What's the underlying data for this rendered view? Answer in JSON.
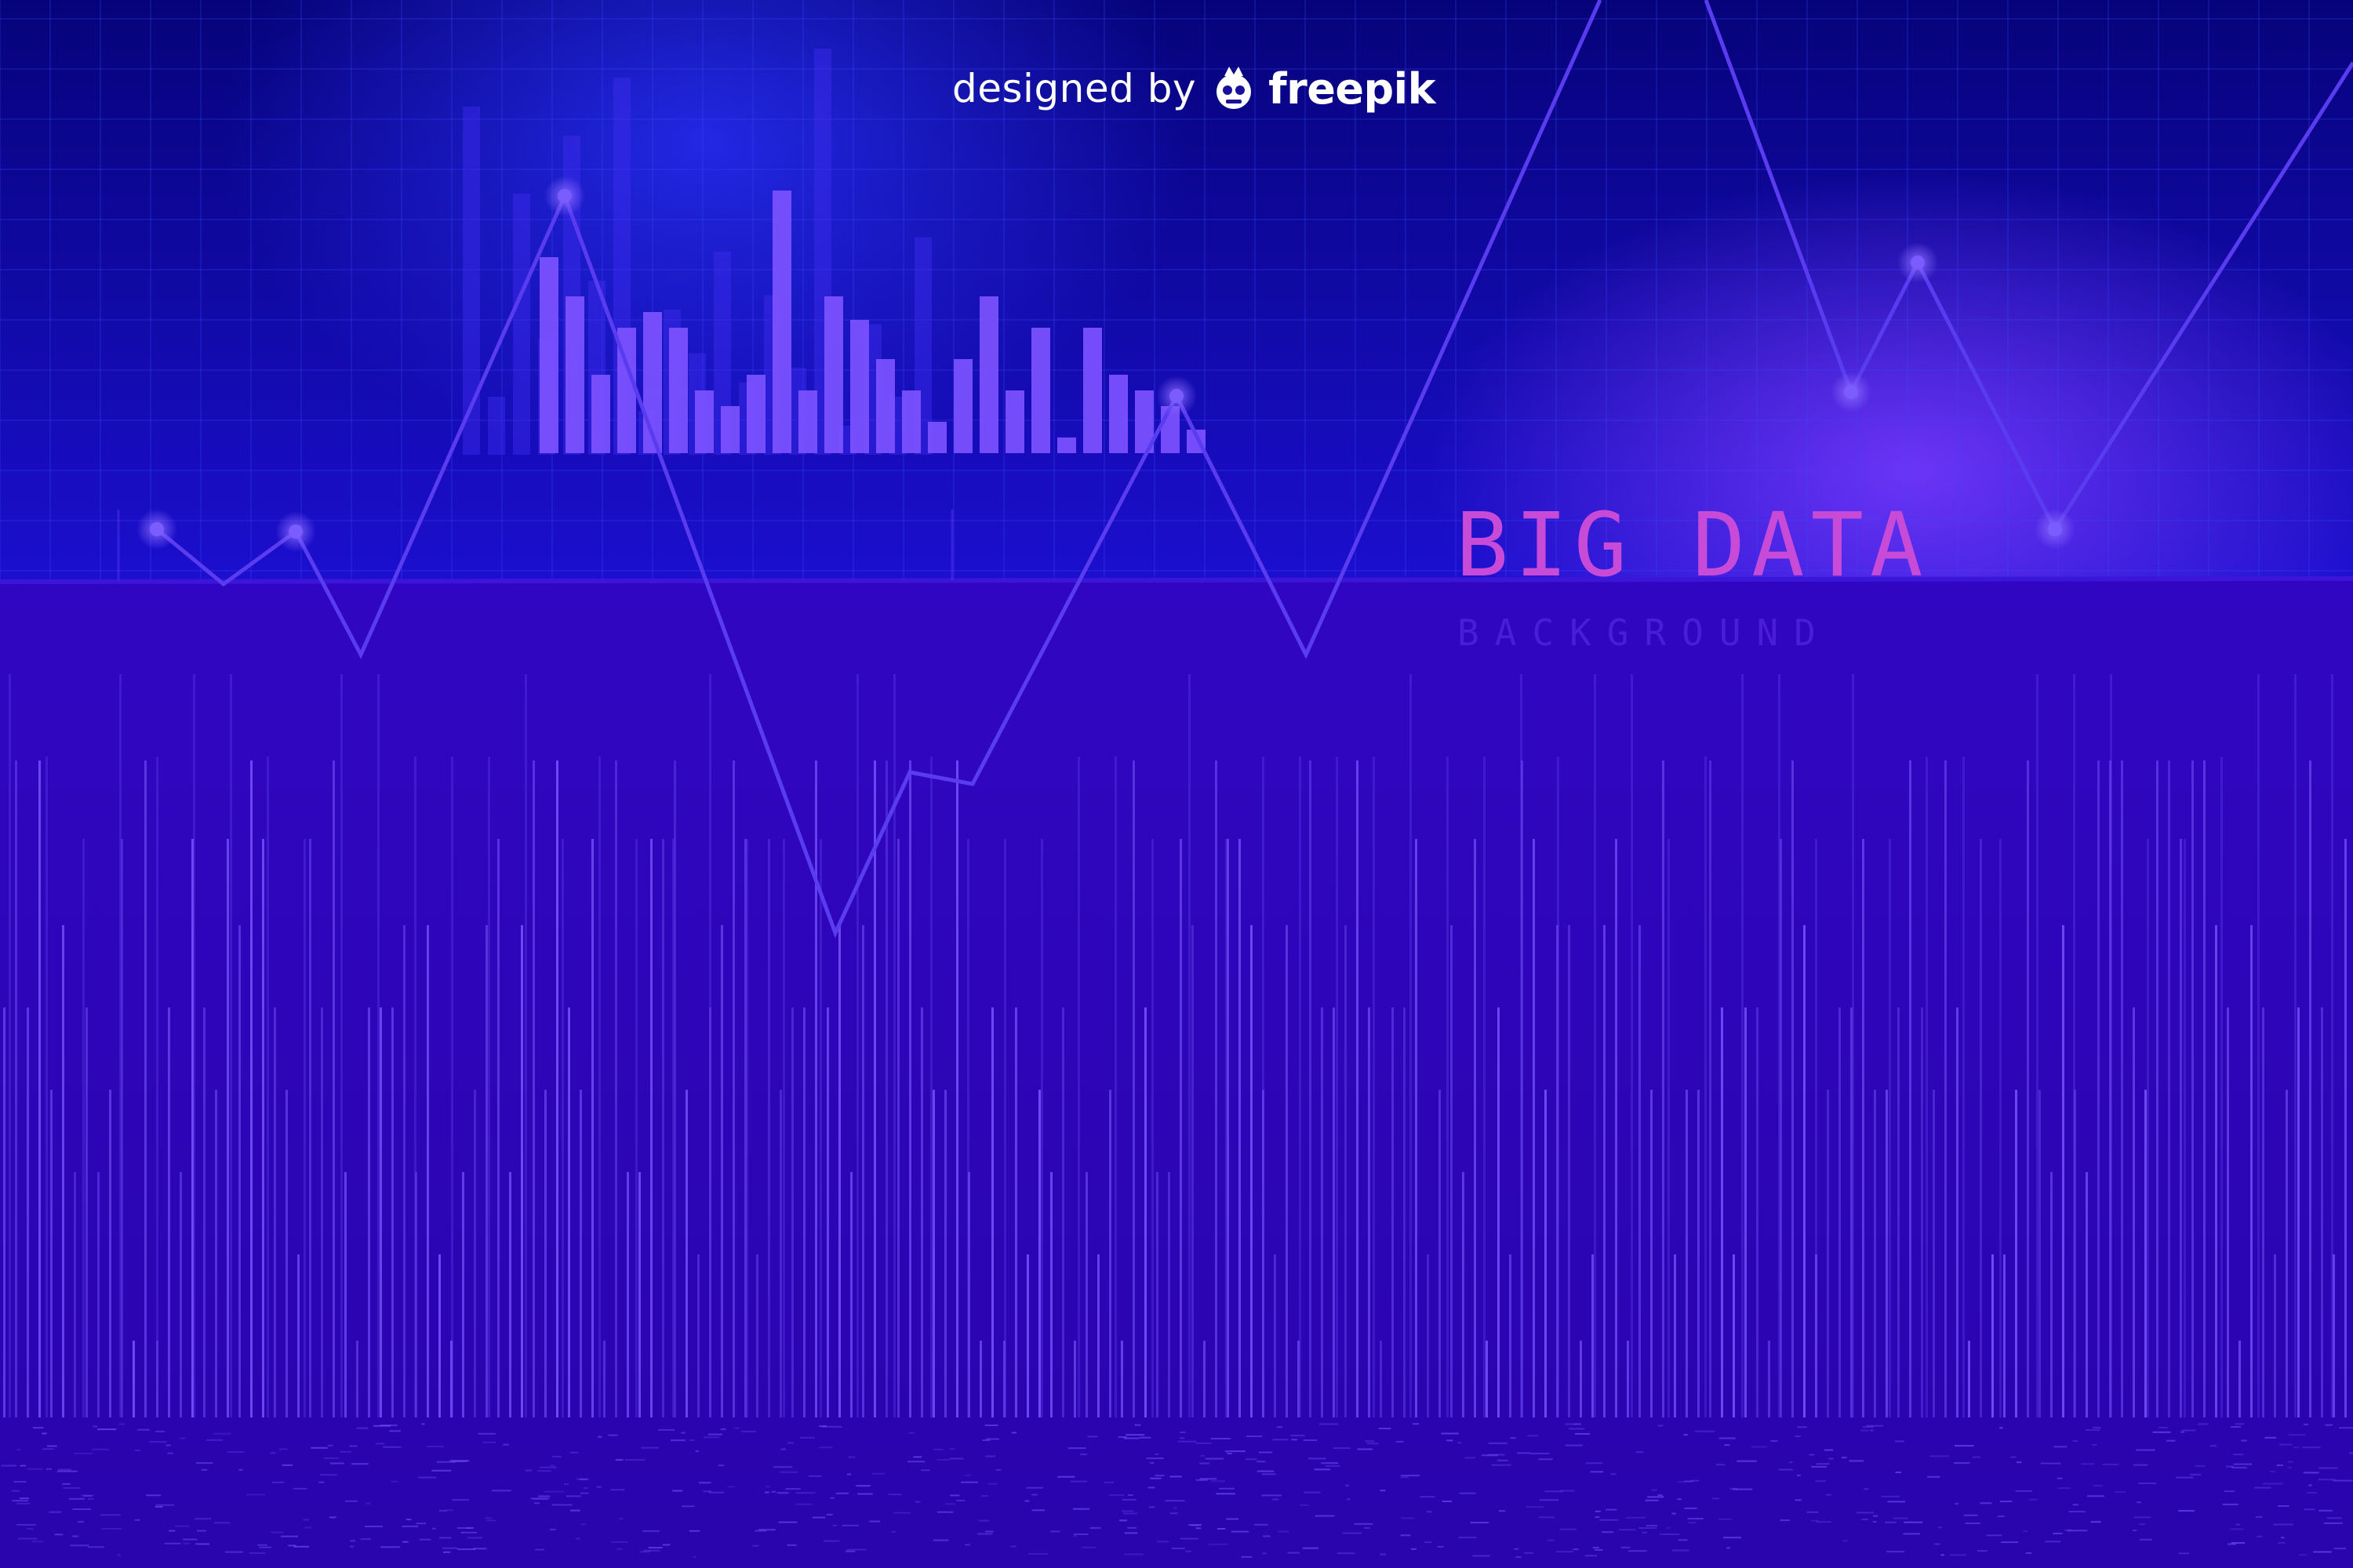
{
  "credit": {
    "prefix": "designed by",
    "brand": "freepik"
  },
  "headline": {
    "title": "BIG DATA",
    "subtitle": "BACKGROUND"
  },
  "colors": {
    "sky_top": "#06037a",
    "sky_glow": "#5a2fff",
    "floor": "#2c05b8",
    "accent_line": "#5a3cf0",
    "bar_light": "#7d52ff",
    "title_pink": "#c84bd8",
    "subtitle_violet": "#4a1ed6",
    "credit_white": "#ffffff"
  },
  "icons": [
    "freepik-logo-icon"
  ]
}
